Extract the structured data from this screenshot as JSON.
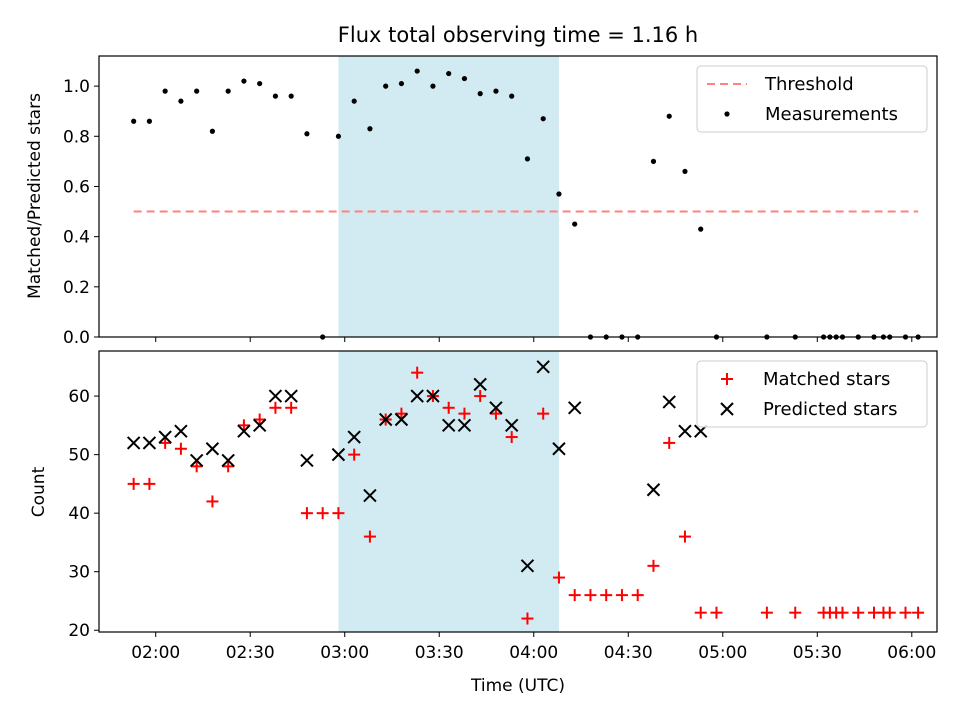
{
  "chart_data": [
    {
      "type": "scatter",
      "title": "Flux total observing time = 1.16 h",
      "xlabel": "",
      "ylabel": "Matched/Predicted stars",
      "xlim": [
        "01:42",
        "06:08"
      ],
      "ylim": [
        0,
        1.12
      ],
      "x_tick_labels": [
        "02:00",
        "02:30",
        "03:00",
        "03:30",
        "04:00",
        "04:30",
        "05:00",
        "05:30",
        "06:00"
      ],
      "y_ticks": [
        0.0,
        0.2,
        0.4,
        0.6,
        0.8,
        1.0
      ],
      "y_tick_labels": [
        "0.0",
        "0.2",
        "0.4",
        "0.6",
        "0.8",
        "1.0"
      ],
      "shaded_region": {
        "x": [
          "02:58",
          "04:08"
        ],
        "color": "#add8e6"
      },
      "legend_position": "top-right",
      "series": [
        {
          "name": "Threshold",
          "kind": "line",
          "style": "dashed",
          "color": "#ff8080",
          "x": [
            "01:53",
            "06:02"
          ],
          "y": [
            0.5,
            0.5
          ]
        },
        {
          "name": "Measurements",
          "kind": "scatter",
          "color": "#000000",
          "x": [
            "01:53",
            "01:58",
            "02:03",
            "02:08",
            "02:13",
            "02:18",
            "02:23",
            "02:28",
            "02:33",
            "02:38",
            "02:43",
            "02:48",
            "02:53",
            "02:58",
            "03:03",
            "03:08",
            "03:13",
            "03:18",
            "03:23",
            "03:28",
            "03:33",
            "03:38",
            "03:43",
            "03:48",
            "03:53",
            "03:58",
            "04:03",
            "04:08",
            "04:13",
            "04:18",
            "04:23",
            "04:28",
            "04:33",
            "04:38",
            "04:43",
            "04:48",
            "04:53",
            "04:58",
            "05:14",
            "05:23",
            "05:32",
            "05:34",
            "05:36",
            "05:38",
            "05:43",
            "05:48",
            "05:51",
            "05:53",
            "05:58",
            "06:02"
          ],
          "y": [
            0.86,
            0.86,
            0.98,
            0.94,
            0.98,
            0.82,
            0.98,
            1.02,
            1.01,
            0.96,
            0.96,
            0.81,
            0.0,
            0.8,
            0.94,
            0.83,
            1.0,
            1.01,
            1.06,
            1.0,
            1.05,
            1.03,
            0.97,
            0.98,
            0.96,
            0.71,
            0.87,
            0.57,
            0.45,
            0.0,
            0.0,
            0.0,
            0.0,
            0.7,
            0.88,
            0.66,
            0.43,
            0.0,
            0.0,
            0.0,
            0.0,
            0.0,
            0.0,
            0.0,
            0.0,
            0.0,
            0.0,
            0.0,
            0.0,
            0.0
          ]
        }
      ]
    },
    {
      "type": "scatter",
      "title": "",
      "xlabel": "Time (UTC)",
      "ylabel": "Count",
      "xlim": [
        "01:42",
        "06:08"
      ],
      "ylim": [
        19.7,
        67.7
      ],
      "x_tick_labels": [
        "02:00",
        "02:30",
        "03:00",
        "03:30",
        "04:00",
        "04:30",
        "05:00",
        "05:30",
        "06:00"
      ],
      "y_ticks": [
        20,
        30,
        40,
        50,
        60
      ],
      "y_tick_labels": [
        "20",
        "30",
        "40",
        "50",
        "60"
      ],
      "shaded_region": {
        "x": [
          "02:58",
          "04:08"
        ],
        "color": "#add8e6"
      },
      "legend_position": "top-right",
      "series": [
        {
          "name": "Matched stars",
          "kind": "plus",
          "color": "#ff0000",
          "x": [
            "01:53",
            "01:58",
            "02:03",
            "02:08",
            "02:13",
            "02:18",
            "02:23",
            "02:28",
            "02:33",
            "02:38",
            "02:43",
            "02:48",
            "02:53",
            "02:58",
            "03:03",
            "03:08",
            "03:13",
            "03:18",
            "03:23",
            "03:28",
            "03:33",
            "03:38",
            "03:43",
            "03:48",
            "03:53",
            "03:58",
            "04:03",
            "04:08",
            "04:13",
            "04:18",
            "04:23",
            "04:28",
            "04:33",
            "04:38",
            "04:43",
            "04:48",
            "04:53",
            "04:58",
            "05:14",
            "05:23",
            "05:32",
            "05:34",
            "05:36",
            "05:38",
            "05:43",
            "05:48",
            "05:51",
            "05:53",
            "05:58",
            "06:02"
          ],
          "y": [
            45,
            45,
            52,
            51,
            48,
            42,
            48,
            55,
            56,
            58,
            58,
            40,
            40,
            40,
            50,
            36,
            56,
            57,
            64,
            60,
            58,
            57,
            60,
            57,
            53,
            22,
            57,
            29,
            26,
            26,
            26,
            26,
            26,
            31,
            52,
            36,
            23,
            23,
            23,
            23,
            23,
            23,
            23,
            23,
            23,
            23,
            23,
            23,
            23,
            23
          ]
        },
        {
          "name": "Predicted stars",
          "kind": "x",
          "color": "#000000",
          "x": [
            "01:53",
            "01:58",
            "02:03",
            "02:08",
            "02:13",
            "02:18",
            "02:23",
            "02:28",
            "02:33",
            "02:38",
            "02:43",
            "02:48",
            "02:58",
            "03:03",
            "03:08",
            "03:13",
            "03:18",
            "03:23",
            "03:28",
            "03:33",
            "03:38",
            "03:43",
            "03:48",
            "03:53",
            "03:58",
            "04:03",
            "04:08",
            "04:13",
            "04:38",
            "04:43",
            "04:48",
            "04:53"
          ],
          "y": [
            52,
            52,
            53,
            54,
            49,
            51,
            49,
            54,
            55,
            60,
            60,
            49,
            50,
            53,
            43,
            56,
            56,
            60,
            60,
            55,
            55,
            62,
            58,
            55,
            31,
            65,
            51,
            58,
            44,
            59,
            54,
            54
          ]
        }
      ]
    }
  ]
}
